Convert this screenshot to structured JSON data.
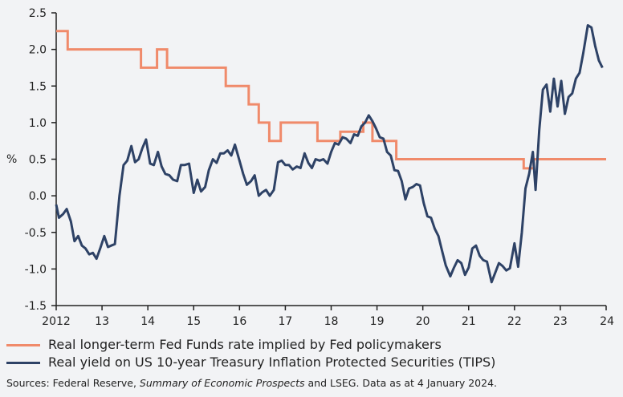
{
  "chart_data": {
    "type": "line",
    "title": "",
    "xlabel": "",
    "ylabel": "%",
    "ylim": [
      -1.5,
      2.5
    ],
    "xlim": [
      2012,
      2024
    ],
    "yticks": [
      "2.5",
      "2.0",
      "1.5",
      "1.0",
      "0.5",
      "0.0",
      "-0.5",
      "-1.0",
      "-1.5"
    ],
    "ytick_values": [
      2.5,
      2.0,
      1.5,
      1.0,
      0.5,
      0.0,
      -0.5,
      -1.0,
      -1.5
    ],
    "xticks": [
      "2012",
      "13",
      "14",
      "15",
      "16",
      "17",
      "18",
      "19",
      "20",
      "21",
      "22",
      "23",
      "24"
    ],
    "xtick_values": [
      2012,
      2013,
      2014,
      2015,
      2016,
      2017,
      2018,
      2019,
      2020,
      2021,
      2022,
      2023,
      2024
    ],
    "series": [
      {
        "name": "Real longer-term Fed Funds rate implied by Fed policymakers",
        "color": "#f08a6a",
        "step": true,
        "points": [
          [
            2012.0,
            2.25
          ],
          [
            2012.25,
            2.0
          ],
          [
            2013.85,
            1.75
          ],
          [
            2014.2,
            2.0
          ],
          [
            2014.42,
            1.75
          ],
          [
            2015.7,
            1.5
          ],
          [
            2016.2,
            1.25
          ],
          [
            2016.42,
            1.0
          ],
          [
            2016.65,
            0.75
          ],
          [
            2016.9,
            1.0
          ],
          [
            2017.7,
            0.75
          ],
          [
            2018.2,
            0.875
          ],
          [
            2018.7,
            1.0
          ],
          [
            2018.9,
            0.75
          ],
          [
            2019.42,
            0.5
          ],
          [
            2022.2,
            0.375
          ],
          [
            2022.42,
            0.5
          ],
          [
            2024.0,
            0.5
          ]
        ]
      },
      {
        "name": "Real yield on US 10-year Treasury Inflation Protected Securities (TIPS)",
        "color": "#2e4266",
        "step": false,
        "points": [
          [
            2012.0,
            -0.12
          ],
          [
            2012.06,
            -0.3
          ],
          [
            2012.15,
            -0.25
          ],
          [
            2012.23,
            -0.18
          ],
          [
            2012.32,
            -0.35
          ],
          [
            2012.4,
            -0.62
          ],
          [
            2012.48,
            -0.55
          ],
          [
            2012.56,
            -0.68
          ],
          [
            2012.64,
            -0.72
          ],
          [
            2012.72,
            -0.8
          ],
          [
            2012.8,
            -0.78
          ],
          [
            2012.88,
            -0.86
          ],
          [
            2012.96,
            -0.72
          ],
          [
            2013.05,
            -0.55
          ],
          [
            2013.13,
            -0.7
          ],
          [
            2013.2,
            -0.68
          ],
          [
            2013.28,
            -0.66
          ],
          [
            2013.38,
            0.0
          ],
          [
            2013.47,
            0.42
          ],
          [
            2013.55,
            0.48
          ],
          [
            2013.64,
            0.68
          ],
          [
            2013.72,
            0.46
          ],
          [
            2013.8,
            0.5
          ],
          [
            2013.88,
            0.65
          ],
          [
            2013.96,
            0.77
          ],
          [
            2014.05,
            0.44
          ],
          [
            2014.13,
            0.42
          ],
          [
            2014.22,
            0.6
          ],
          [
            2014.3,
            0.4
          ],
          [
            2014.38,
            0.3
          ],
          [
            2014.47,
            0.28
          ],
          [
            2014.55,
            0.22
          ],
          [
            2014.64,
            0.2
          ],
          [
            2014.72,
            0.42
          ],
          [
            2014.8,
            0.42
          ],
          [
            2014.9,
            0.44
          ],
          [
            2015.0,
            0.04
          ],
          [
            2015.08,
            0.22
          ],
          [
            2015.16,
            0.06
          ],
          [
            2015.25,
            0.12
          ],
          [
            2015.33,
            0.35
          ],
          [
            2015.42,
            0.5
          ],
          [
            2015.5,
            0.45
          ],
          [
            2015.58,
            0.58
          ],
          [
            2015.66,
            0.58
          ],
          [
            2015.74,
            0.62
          ],
          [
            2015.82,
            0.55
          ],
          [
            2015.9,
            0.7
          ],
          [
            2016.0,
            0.48
          ],
          [
            2016.08,
            0.3
          ],
          [
            2016.16,
            0.15
          ],
          [
            2016.25,
            0.2
          ],
          [
            2016.33,
            0.28
          ],
          [
            2016.42,
            0.0
          ],
          [
            2016.5,
            0.05
          ],
          [
            2016.58,
            0.08
          ],
          [
            2016.66,
            0.0
          ],
          [
            2016.75,
            0.08
          ],
          [
            2016.84,
            0.46
          ],
          [
            2016.92,
            0.48
          ],
          [
            2017.0,
            0.42
          ],
          [
            2017.08,
            0.42
          ],
          [
            2017.16,
            0.36
          ],
          [
            2017.25,
            0.4
          ],
          [
            2017.33,
            0.38
          ],
          [
            2017.42,
            0.58
          ],
          [
            2017.5,
            0.45
          ],
          [
            2017.58,
            0.38
          ],
          [
            2017.66,
            0.5
          ],
          [
            2017.75,
            0.48
          ],
          [
            2017.83,
            0.5
          ],
          [
            2017.92,
            0.44
          ],
          [
            2018.0,
            0.6
          ],
          [
            2018.08,
            0.72
          ],
          [
            2018.16,
            0.7
          ],
          [
            2018.25,
            0.8
          ],
          [
            2018.33,
            0.78
          ],
          [
            2018.42,
            0.72
          ],
          [
            2018.5,
            0.84
          ],
          [
            2018.58,
            0.82
          ],
          [
            2018.66,
            0.95
          ],
          [
            2018.74,
            1.0
          ],
          [
            2018.82,
            1.1
          ],
          [
            2018.9,
            1.02
          ],
          [
            2018.98,
            0.92
          ],
          [
            2019.06,
            0.8
          ],
          [
            2019.14,
            0.78
          ],
          [
            2019.22,
            0.6
          ],
          [
            2019.3,
            0.55
          ],
          [
            2019.38,
            0.35
          ],
          [
            2019.46,
            0.34
          ],
          [
            2019.54,
            0.2
          ],
          [
            2019.62,
            -0.05
          ],
          [
            2019.7,
            0.1
          ],
          [
            2019.78,
            0.12
          ],
          [
            2019.86,
            0.16
          ],
          [
            2019.94,
            0.14
          ],
          [
            2020.02,
            -0.1
          ],
          [
            2020.1,
            -0.28
          ],
          [
            2020.18,
            -0.3
          ],
          [
            2020.26,
            -0.45
          ],
          [
            2020.34,
            -0.55
          ],
          [
            2020.42,
            -0.75
          ],
          [
            2020.5,
            -0.95
          ],
          [
            2020.6,
            -1.1
          ],
          [
            2020.68,
            -0.98
          ],
          [
            2020.76,
            -0.88
          ],
          [
            2020.84,
            -0.92
          ],
          [
            2020.92,
            -1.08
          ],
          [
            2021.0,
            -0.98
          ],
          [
            2021.08,
            -0.72
          ],
          [
            2021.16,
            -0.68
          ],
          [
            2021.24,
            -0.82
          ],
          [
            2021.32,
            -0.88
          ],
          [
            2021.4,
            -0.9
          ],
          [
            2021.5,
            -1.18
          ],
          [
            2021.58,
            -1.05
          ],
          [
            2021.66,
            -0.92
          ],
          [
            2021.74,
            -0.96
          ],
          [
            2021.82,
            -1.02
          ],
          [
            2021.9,
            -0.99
          ],
          [
            2022.0,
            -0.65
          ],
          [
            2022.08,
            -0.97
          ],
          [
            2022.16,
            -0.5
          ],
          [
            2022.24,
            0.1
          ],
          [
            2022.32,
            0.3
          ],
          [
            2022.4,
            0.6
          ],
          [
            2022.46,
            0.08
          ],
          [
            2022.54,
            0.9
          ],
          [
            2022.62,
            1.45
          ],
          [
            2022.7,
            1.52
          ],
          [
            2022.78,
            1.15
          ],
          [
            2022.86,
            1.6
          ],
          [
            2022.94,
            1.22
          ],
          [
            2023.02,
            1.57
          ],
          [
            2023.1,
            1.12
          ],
          [
            2023.18,
            1.35
          ],
          [
            2023.26,
            1.4
          ],
          [
            2023.34,
            1.6
          ],
          [
            2023.42,
            1.68
          ],
          [
            2023.5,
            1.95
          ],
          [
            2023.6,
            2.33
          ],
          [
            2023.68,
            2.3
          ],
          [
            2023.76,
            2.05
          ],
          [
            2023.84,
            1.85
          ],
          [
            2023.92,
            1.75
          ]
        ]
      }
    ]
  },
  "legend": {
    "fed_funds": "Real longer-term Fed Funds rate implied by Fed policymakers",
    "tips": "Real yield on US 10-year Treasury Inflation Protected Securities (TIPS)"
  },
  "source": {
    "prefix": "Sources: Federal Reserve, ",
    "italic": "Summary of Economic Prospects",
    "suffix": " and LSEG. Data as at 4 January 2024."
  },
  "colors": {
    "background": "#f2f3f5",
    "axis": "#222222",
    "fed_funds": "#f08a6a",
    "tips": "#2e4266"
  }
}
